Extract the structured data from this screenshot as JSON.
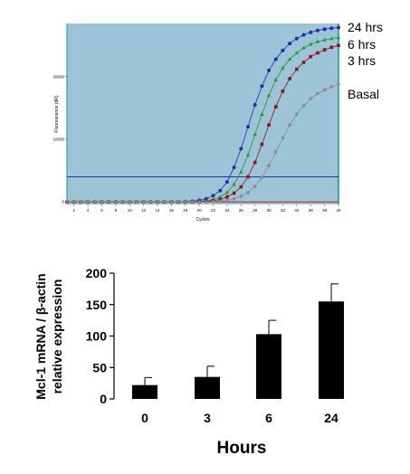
{
  "chart_data": [
    {
      "type": "line",
      "title": "",
      "xlabel": "Cycles",
      "ylabel": "Fluorescence (dR)",
      "xlim": [
        1,
        40
      ],
      "ylim": [
        -400,
        28500
      ],
      "xticks": [
        2,
        4,
        6,
        8,
        10,
        12,
        14,
        16,
        18,
        20,
        22,
        24,
        26,
        28,
        30,
        32,
        34,
        36,
        38,
        40
      ],
      "yticks": [
        0,
        10000,
        20000
      ],
      "ytick_labels": [
        "0",
        "10000",
        "20000"
      ],
      "background": "#9cc3d6",
      "threshold_lines": [
        {
          "y": 4000,
          "color": "#1f2fbf"
        },
        {
          "y": 0,
          "color": "#b02020"
        }
      ],
      "series": [
        {
          "name": "24 hrs",
          "color": "#1c2fa8",
          "marker": "circle",
          "x": [
            1,
            2,
            3,
            4,
            5,
            6,
            7,
            8,
            9,
            10,
            11,
            12,
            13,
            14,
            15,
            16,
            17,
            18,
            19,
            20,
            21,
            22,
            23,
            24,
            25,
            26,
            27,
            28,
            29,
            30,
            31,
            32,
            33,
            34,
            35,
            36,
            37,
            38,
            39,
            40
          ],
          "y": [
            0,
            0,
            0,
            0,
            0,
            0,
            0,
            0,
            0,
            0,
            0,
            0,
            0,
            0,
            0,
            0,
            0,
            50,
            100,
            250,
            500,
            1000,
            1800,
            3200,
            5500,
            8500,
            12000,
            15500,
            18500,
            21000,
            22800,
            24200,
            25300,
            26100,
            26700,
            27100,
            27400,
            27600,
            27750,
            27850
          ]
        },
        {
          "name": "6 hrs",
          "color": "#1f9a2e",
          "marker": "triangle",
          "x": [
            1,
            2,
            3,
            4,
            5,
            6,
            7,
            8,
            9,
            10,
            11,
            12,
            13,
            14,
            15,
            16,
            17,
            18,
            19,
            20,
            21,
            22,
            23,
            24,
            25,
            26,
            27,
            28,
            29,
            30,
            31,
            32,
            33,
            34,
            35,
            36,
            37,
            38,
            39,
            40
          ],
          "y": [
            0,
            0,
            0,
            0,
            0,
            0,
            0,
            0,
            0,
            0,
            0,
            0,
            0,
            0,
            0,
            0,
            0,
            0,
            50,
            100,
            200,
            400,
            800,
            1500,
            2800,
            4800,
            7500,
            10800,
            14000,
            17000,
            19500,
            21400,
            22800,
            23800,
            24600,
            25200,
            25600,
            25900,
            26100,
            26250
          ]
        },
        {
          "name": "3 hrs",
          "color": "#8a1515",
          "marker": "square",
          "x": [
            1,
            2,
            3,
            4,
            5,
            6,
            7,
            8,
            9,
            10,
            11,
            12,
            13,
            14,
            15,
            16,
            17,
            18,
            19,
            20,
            21,
            22,
            23,
            24,
            25,
            26,
            27,
            28,
            29,
            30,
            31,
            32,
            33,
            34,
            35,
            36,
            37,
            38,
            39,
            40
          ],
          "y": [
            0,
            0,
            0,
            0,
            0,
            0,
            0,
            0,
            0,
            0,
            0,
            0,
            0,
            0,
            0,
            0,
            0,
            0,
            0,
            50,
            100,
            200,
            400,
            800,
            1400,
            2400,
            4000,
            6300,
            9200,
            12300,
            15200,
            17700,
            19700,
            21200,
            22300,
            23200,
            23800,
            24300,
            24700,
            25000
          ]
        },
        {
          "name": "Basal",
          "color": "#8c8c8c",
          "marker": "diamond",
          "x": [
            1,
            2,
            3,
            4,
            5,
            6,
            7,
            8,
            9,
            10,
            11,
            12,
            13,
            14,
            15,
            16,
            17,
            18,
            19,
            20,
            21,
            22,
            23,
            24,
            25,
            26,
            27,
            28,
            29,
            30,
            31,
            32,
            33,
            34,
            35,
            36,
            37,
            38,
            39,
            40
          ],
          "y": [
            0,
            0,
            0,
            0,
            0,
            0,
            0,
            0,
            0,
            0,
            0,
            0,
            0,
            0,
            0,
            0,
            0,
            0,
            0,
            0,
            0,
            50,
            100,
            250,
            500,
            900,
            1500,
            2500,
            3900,
            5800,
            8000,
            10200,
            12300,
            14000,
            15400,
            16500,
            17300,
            17900,
            18400,
            18800
          ]
        }
      ]
    },
    {
      "type": "bar",
      "title": "",
      "categories": [
        "0",
        "3",
        "6",
        "24"
      ],
      "values": [
        22,
        35,
        103,
        155
      ],
      "errors": [
        12,
        17,
        22,
        28
      ],
      "xlabel": "Hours",
      "ylabel_lines": [
        "Mcl-1 mRNA / β-actin",
        "relative expression"
      ],
      "ylim": [
        0,
        200
      ],
      "yticks": [
        0,
        50,
        100,
        150,
        200
      ],
      "bar_color": "#000000"
    }
  ]
}
